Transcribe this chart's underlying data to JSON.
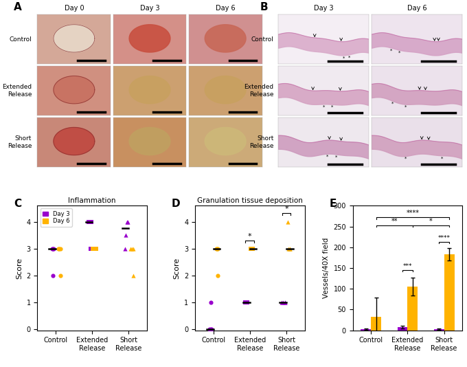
{
  "panel_labels": [
    "A",
    "B",
    "C",
    "D",
    "E"
  ],
  "col_headers_A": [
    "Day 0",
    "Day 3",
    "Day 6"
  ],
  "row_labels_A": [
    "Control",
    "Extended\nRelease",
    "Short\nRelease"
  ],
  "col_headers_B": [
    "Day 3",
    "Day 6"
  ],
  "row_labels_B": [
    "Control",
    "Extended\nRelease",
    "Short\nRelease"
  ],
  "bg_A": [
    [
      "#d4a898",
      "#d49088",
      "#d09090"
    ],
    [
      "#d09080",
      "#cca070",
      "#cca070"
    ],
    [
      "#c88878",
      "#c89060",
      "#ccaa78"
    ]
  ],
  "wound_colors_A": [
    [
      "#e8d8c8",
      "#c85040",
      "#c86858"
    ],
    [
      "#c87060",
      "#c8a060",
      "#c8a060"
    ],
    [
      "#c04840",
      "#c0a060",
      "#ccb878"
    ]
  ],
  "bg_B": [
    [
      "#f4eef4",
      "#eee4ee"
    ],
    [
      "#f0eaf0",
      "#ece2ec"
    ],
    [
      "#eee8ee",
      "#eae0ea"
    ]
  ],
  "tissue_B": [
    [
      "#d8a8c8",
      "#d4a0c4"
    ],
    [
      "#d4a0c0",
      "#d09cbc"
    ],
    [
      "#cc98bc",
      "#d09cbc"
    ]
  ],
  "purple": "#9900CC",
  "orange": "#FFB300",
  "title_C": "Inflammation",
  "title_D": "Granulation tissue deposition",
  "ylabel_CD": "Score",
  "ylabel_E": "Vessels/40X field",
  "xtick_labels": [
    "Control",
    "Extended\nRelease",
    "Short\nRelease"
  ],
  "C_data": {
    "control": {
      "day3": [
        2.0,
        3.0,
        3.0,
        3.0
      ],
      "day6": [
        2.0,
        3.0,
        3.0,
        3.0
      ]
    },
    "extended": {
      "day3": [
        3.0,
        4.0,
        4.0,
        4.0
      ],
      "day6": [
        3.0,
        3.0,
        3.0,
        3.0
      ]
    },
    "short": {
      "day3": [
        3.5,
        4.0,
        4.0,
        3.0
      ],
      "day6": [
        2.0,
        3.0,
        3.0,
        3.0
      ]
    }
  },
  "D_data": {
    "control": {
      "day3": [
        0.0,
        0.0,
        0.0,
        1.0
      ],
      "day6": [
        2.0,
        3.0,
        3.0,
        3.0
      ]
    },
    "extended": {
      "day3": [
        1.0,
        1.0,
        1.0,
        1.0
      ],
      "day6": [
        3.0,
        3.0,
        3.0,
        3.0
      ]
    },
    "short": {
      "day3": [
        1.0,
        1.0,
        1.0,
        1.0
      ],
      "day6": [
        3.0,
        3.0,
        3.0,
        4.0
      ]
    }
  },
  "E_data": {
    "control": {
      "d3": 3.0,
      "d3e": 2.0,
      "d6": 33.0,
      "d6e": 45.0
    },
    "extended": {
      "d3": 8.0,
      "d3e": 3.0,
      "d6": 105.0,
      "d6e": 22.0
    },
    "short": {
      "d3": 3.0,
      "d3e": 2.0,
      "d6": 183.0,
      "d6e": 15.0
    }
  },
  "ylim_CD": [
    -0.05,
    4.6
  ],
  "yticks_CD": [
    0,
    1,
    2,
    3,
    4
  ],
  "ylim_E": [
    0,
    300
  ],
  "yticks_E": [
    0,
    50,
    100,
    150,
    200,
    250,
    300
  ],
  "legend_labels": [
    "Day 3",
    "Day 6"
  ],
  "background": "#ffffff"
}
